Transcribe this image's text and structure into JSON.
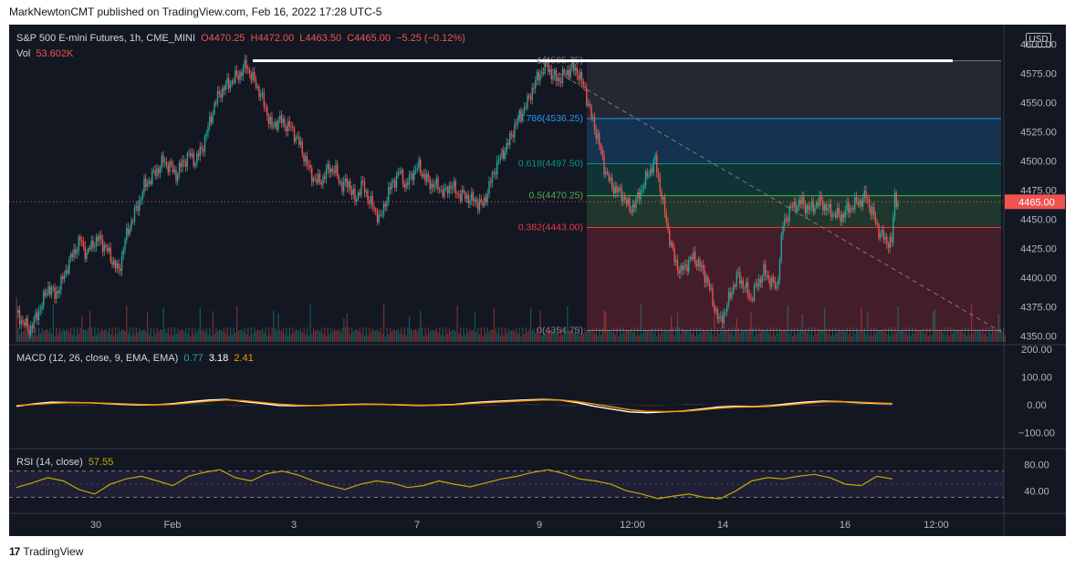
{
  "header": {
    "published": "MarkNewtonCMT published on TradingView.com, Feb 16, 2022 17:28 UTC-5"
  },
  "footer": {
    "brand": "TradingView",
    "logo": "tradingview-logo-icon"
  },
  "price_legend": {
    "symbol": "S&P 500 E-mini Futures, 1h, CME_MINI",
    "open": "O4470.25",
    "high": "H4472.00",
    "low": "L4463.50",
    "close": "C4465.00",
    "change": "−5.25 (−0.12%)",
    "vol_label": "Vol",
    "vol_value": "53.602K",
    "currency": "USD"
  },
  "macd_legend": {
    "label": "MACD (12, 26, close, 9, EMA, EMA)",
    "hist": "0.77",
    "macd": "3.18",
    "signal": "2.41"
  },
  "rsi_legend": {
    "label": "RSI (14, close)",
    "value": "57.55"
  },
  "colors": {
    "bg": "#131722",
    "up": "#26a69a",
    "down": "#ef5350",
    "grid": "#2a2e39",
    "text": "#b2b5be",
    "macd": "#ffffff",
    "signal": "#ff9800",
    "rsi": "#c3a900"
  },
  "chart_data": [
    {
      "type": "candlestick",
      "title": "S&P 500 E-mini Futures, 1h, CME_MINI",
      "x_ticks": [
        "30",
        "Feb",
        "3",
        "7",
        "9",
        "12:00",
        "14",
        "16",
        "12:00"
      ],
      "y_ticks": [
        "4600.00",
        "4575.00",
        "4550.00",
        "4525.00",
        "4500.00",
        "4475.00",
        "4450.00",
        "4425.00",
        "4400.00",
        "4375.00",
        "4350.00"
      ],
      "ylim": [
        4345,
        4605
      ],
      "last_price": "4465.00",
      "close_path": [
        [
          0,
          4370
        ],
        [
          4,
          4362
        ],
        [
          8,
          4355
        ],
        [
          12,
          4365
        ],
        [
          16,
          4378
        ],
        [
          20,
          4392
        ],
        [
          24,
          4385
        ],
        [
          28,
          4395
        ],
        [
          32,
          4410
        ],
        [
          36,
          4422
        ],
        [
          40,
          4432
        ],
        [
          44,
          4420
        ],
        [
          48,
          4430
        ],
        [
          52,
          4433
        ],
        [
          56,
          4425
        ],
        [
          60,
          4415
        ],
        [
          64,
          4405
        ],
        [
          68,
          4432
        ],
        [
          72,
          4448
        ],
        [
          76,
          4462
        ],
        [
          80,
          4478
        ],
        [
          84,
          4485
        ],
        [
          88,
          4492
        ],
        [
          92,
          4500
        ],
        [
          96,
          4495
        ],
        [
          100,
          4488
        ],
        [
          104,
          4498
        ],
        [
          108,
          4505
        ],
        [
          112,
          4500
        ],
        [
          116,
          4510
        ],
        [
          120,
          4528
        ],
        [
          124,
          4548
        ],
        [
          128,
          4560
        ],
        [
          132,
          4565
        ],
        [
          136,
          4570
        ],
        [
          140,
          4575
        ],
        [
          144,
          4582
        ],
        [
          148,
          4570
        ],
        [
          152,
          4560
        ],
        [
          156,
          4545
        ],
        [
          160,
          4528
        ],
        [
          164,
          4535
        ],
        [
          168,
          4532
        ],
        [
          172,
          4528
        ],
        [
          176,
          4518
        ],
        [
          180,
          4505
        ],
        [
          184,
          4490
        ],
        [
          188,
          4482
        ],
        [
          192,
          4485
        ],
        [
          196,
          4495
        ],
        [
          200,
          4490
        ],
        [
          204,
          4478
        ],
        [
          208,
          4482
        ],
        [
          212,
          4465
        ],
        [
          216,
          4480
        ],
        [
          220,
          4470
        ],
        [
          224,
          4458
        ],
        [
          228,
          4450
        ],
        [
          232,
          4470
        ],
        [
          236,
          4482
        ],
        [
          240,
          4490
        ],
        [
          244,
          4478
        ],
        [
          248,
          4490
        ],
        [
          252,
          4495
        ],
        [
          256,
          4485
        ],
        [
          260,
          4480
        ],
        [
          264,
          4478
        ],
        [
          268,
          4472
        ],
        [
          272,
          4480
        ],
        [
          276,
          4472
        ],
        [
          280,
          4470
        ],
        [
          284,
          4468
        ],
        [
          288,
          4465
        ],
        [
          292,
          4462
        ],
        [
          296,
          4478
        ],
        [
          300,
          4495
        ],
        [
          304,
          4505
        ],
        [
          308,
          4515
        ],
        [
          312,
          4530
        ],
        [
          316,
          4540
        ],
        [
          320,
          4550
        ],
        [
          324,
          4565
        ],
        [
          328,
          4575
        ],
        [
          332,
          4582
        ],
        [
          336,
          4572
        ],
        [
          340,
          4570
        ],
        [
          344,
          4575
        ],
        [
          348,
          4580
        ],
        [
          352,
          4575
        ],
        [
          356,
          4560
        ],
        [
          360,
          4538
        ],
        [
          364,
          4520
        ],
        [
          368,
          4495
        ],
        [
          372,
          4480
        ],
        [
          376,
          4475
        ],
        [
          380,
          4470
        ],
        [
          384,
          4458
        ],
        [
          388,
          4465
        ],
        [
          392,
          4478
        ],
        [
          396,
          4490
        ],
        [
          400,
          4500
        ],
        [
          404,
          4470
        ],
        [
          408,
          4440
        ],
        [
          412,
          4415
        ],
        [
          416,
          4405
        ],
        [
          420,
          4412
        ],
        [
          424,
          4418
        ],
        [
          428,
          4410
        ],
        [
          432,
          4400
        ],
        [
          436,
          4380
        ],
        [
          440,
          4362
        ],
        [
          444,
          4372
        ],
        [
          448,
          4390
        ],
        [
          452,
          4402
        ],
        [
          456,
          4392
        ],
        [
          460,
          4382
        ],
        [
          464,
          4395
        ],
        [
          468,
          4405
        ],
        [
          472,
          4398
        ],
        [
          476,
          4390
        ],
        [
          480,
          4445
        ],
        [
          484,
          4458
        ],
        [
          488,
          4462
        ],
        [
          492,
          4465
        ],
        [
          496,
          4458
        ],
        [
          500,
          4462
        ],
        [
          504,
          4465
        ],
        [
          508,
          4458
        ],
        [
          512,
          4455
        ],
        [
          516,
          4452
        ],
        [
          520,
          4458
        ],
        [
          524,
          4462
        ],
        [
          528,
          4465
        ],
        [
          532,
          4470
        ],
        [
          536,
          4455
        ],
        [
          540,
          4440
        ],
        [
          544,
          4432
        ],
        [
          548,
          4430
        ],
        [
          550,
          4470
        ],
        [
          552,
          4465
        ]
      ],
      "fibonacci": [
        {
          "label": "1(4585.75)",
          "level": 4585.75,
          "color": "#787b86"
        },
        {
          "label": "0.786(4536.25)",
          "level": 4536.25,
          "color": "#2196f3"
        },
        {
          "label": "0.618(4497.50)",
          "level": 4497.5,
          "color": "#089981"
        },
        {
          "label": "0.5(4470.25)",
          "level": 4470.25,
          "color": "#4caf50"
        },
        {
          "label": "0.382(4443.00)",
          "level": 4443.0,
          "color": "#f23645"
        },
        {
          "label": "0(4354.75)",
          "level": 4354.75,
          "color": "#787b86"
        }
      ],
      "resistance_line": {
        "from": 148,
        "to": 552,
        "price": 4585.75,
        "color": "#ffffff"
      },
      "trendline": {
        "from": [
          326,
          4586
        ],
        "to": [
          560,
          4353
        ],
        "color": "#787b86",
        "style": "dashed"
      }
    },
    {
      "type": "line",
      "title": "MACD (12, 26, close, 9, EMA, EMA)",
      "y_ticks": [
        "200.00",
        "100.00",
        "0.00",
        "−100.00"
      ],
      "ylim": [
        -150,
        210
      ],
      "series": [
        {
          "name": "MACD",
          "color": "#ffffff",
          "values": [
            -5,
            4,
            10,
            9,
            8,
            5,
            2,
            0,
            1,
            5,
            12,
            18,
            20,
            12,
            5,
            -2,
            -3,
            -2,
            0,
            2,
            3,
            2,
            0,
            -2,
            0,
            2,
            8,
            12,
            15,
            18,
            20,
            18,
            8,
            -5,
            -15,
            -25,
            -28,
            -25,
            -22,
            -15,
            -8,
            -5,
            -6,
            -3,
            4,
            10,
            14,
            12,
            8,
            5,
            4
          ]
        },
        {
          "name": "Signal",
          "color": "#ff9800",
          "values": [
            -2,
            2,
            6,
            8,
            8,
            6,
            4,
            2,
            1,
            3,
            8,
            14,
            18,
            15,
            9,
            3,
            -1,
            -2,
            -1,
            1,
            2,
            2,
            1,
            -1,
            -1,
            1,
            5,
            9,
            12,
            15,
            18,
            18,
            12,
            3,
            -7,
            -17,
            -23,
            -24,
            -23,
            -18,
            -12,
            -8,
            -7,
            -5,
            0,
            6,
            11,
            12,
            10,
            7,
            5
          ]
        }
      ]
    },
    {
      "type": "line",
      "title": "RSI (14, close)",
      "y_ticks": [
        "80.00",
        "40.00"
      ],
      "ylim": [
        10,
        100
      ],
      "bands": [
        70,
        30
      ],
      "series": [
        {
          "name": "RSI",
          "color": "#c3a900",
          "values": [
            45,
            52,
            60,
            55,
            42,
            35,
            50,
            58,
            62,
            55,
            48,
            62,
            68,
            72,
            60,
            55,
            66,
            70,
            64,
            55,
            48,
            42,
            50,
            55,
            52,
            45,
            48,
            55,
            50,
            46,
            52,
            58,
            62,
            68,
            72,
            66,
            58,
            55,
            50,
            40,
            35,
            28,
            32,
            35,
            30,
            28,
            40,
            55,
            60,
            58,
            62,
            65,
            60,
            50,
            48,
            62,
            58
          ]
        }
      ]
    }
  ]
}
